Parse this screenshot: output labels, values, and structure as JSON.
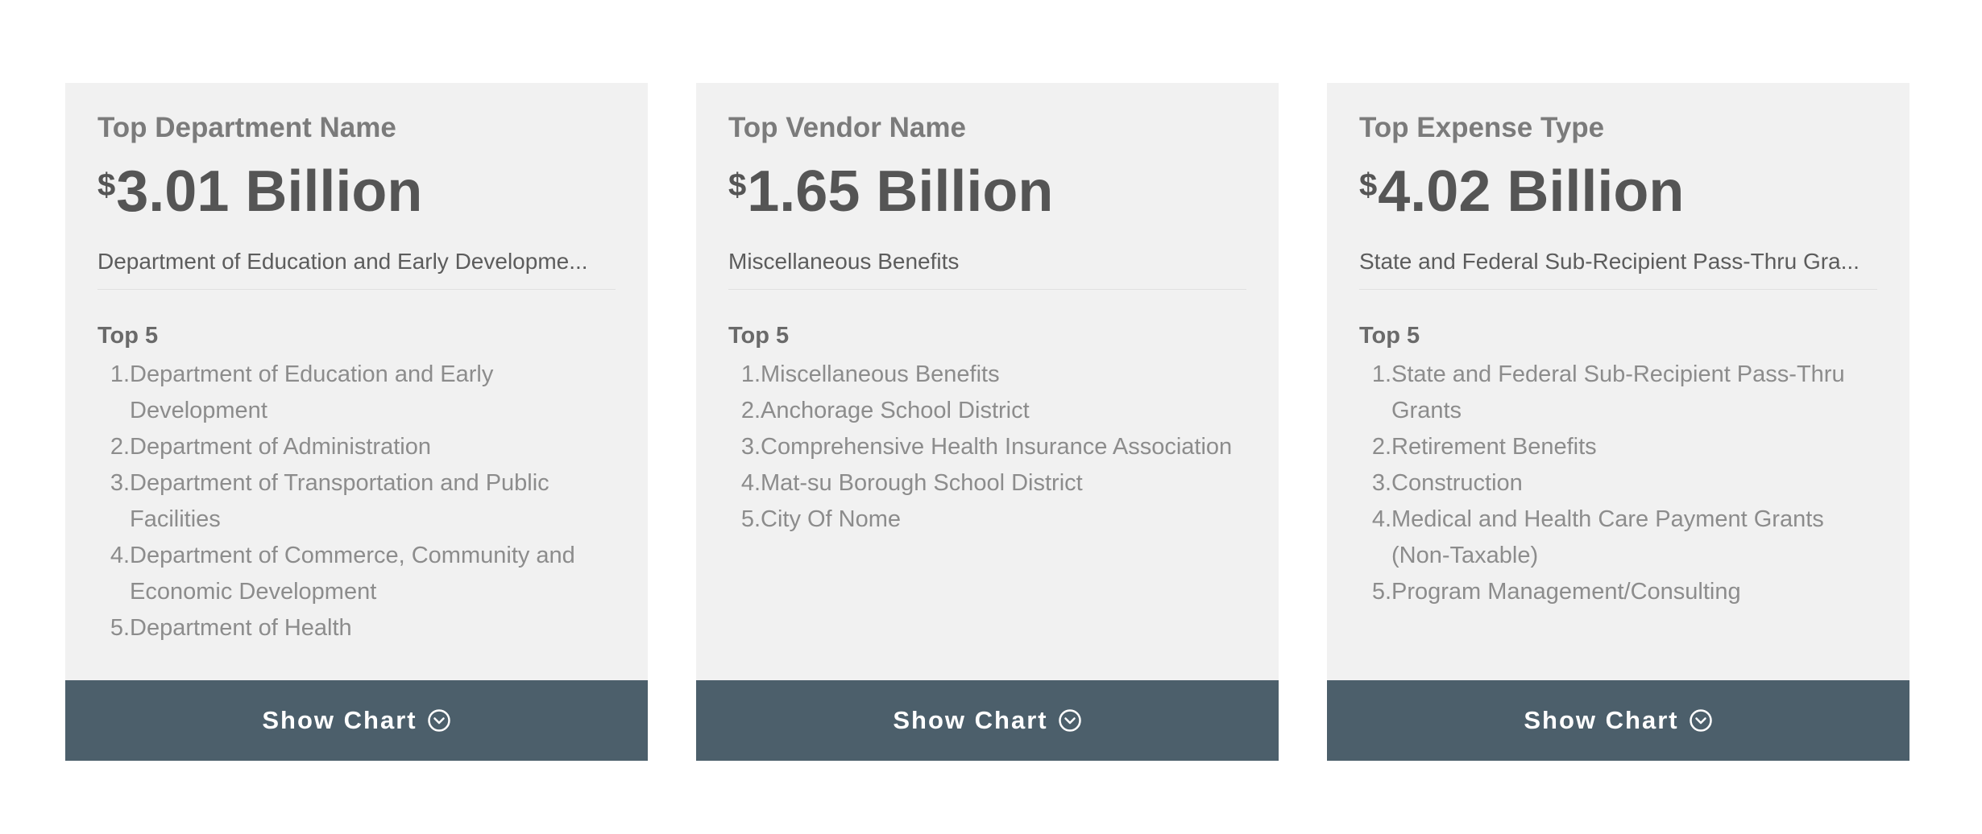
{
  "cards": [
    {
      "label": "Top Department Name",
      "currency": "$",
      "amount": "3.01 Billion",
      "top_name": "Department of Education and Early Developme...",
      "top5_heading": "Top 5",
      "top5": [
        {
          "num": "1.",
          "text": "Department of Education and Early Development"
        },
        {
          "num": "2.",
          "text": "Department of Administration"
        },
        {
          "num": "3.",
          "text": "Department of Transportation and Public Facilities"
        },
        {
          "num": "4.",
          "text": "Department of Commerce, Community and Economic Development"
        },
        {
          "num": "5.",
          "text": "Department of Health"
        }
      ],
      "button_label": "Show Chart"
    },
    {
      "label": "Top Vendor Name",
      "currency": "$",
      "amount": "1.65 Billion",
      "top_name": "Miscellaneous Benefits",
      "top5_heading": "Top 5",
      "top5": [
        {
          "num": "1.",
          "text": "Miscellaneous Benefits"
        },
        {
          "num": "2.",
          "text": "Anchorage School District"
        },
        {
          "num": "3.",
          "text": "Comprehensive Health Insurance Association"
        },
        {
          "num": "4.",
          "text": "Mat-su Borough School District"
        },
        {
          "num": "5.",
          "text": "City Of Nome"
        }
      ],
      "button_label": "Show Chart"
    },
    {
      "label": "Top Expense Type",
      "currency": "$",
      "amount": "4.02 Billion",
      "top_name": "State and Federal Sub-Recipient Pass-Thru Gra...",
      "top5_heading": "Top 5",
      "top5": [
        {
          "num": "1.",
          "text": "State and Federal Sub-Recipient Pass-Thru Grants"
        },
        {
          "num": "2.",
          "text": "Retirement Benefits"
        },
        {
          "num": "3.",
          "text": "Construction"
        },
        {
          "num": "4.",
          "text": "Medical and Health Care Payment Grants (Non-Taxable)"
        },
        {
          "num": "5.",
          "text": "Program Management/Consulting"
        }
      ],
      "button_label": "Show Chart"
    }
  ],
  "icons": {
    "button_icon": "chevron-down-circle-icon"
  },
  "colors": {
    "card_background": "#f1f1f1",
    "button_background": "#4c5f6b",
    "amount_text": "#555555",
    "label_text": "#7b7b7b",
    "list_text": "#8c8c8c"
  }
}
